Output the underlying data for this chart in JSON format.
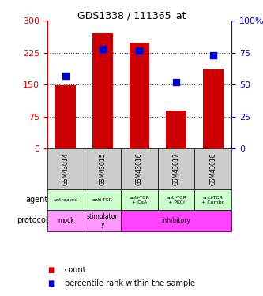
{
  "title": "GDS1338 / 111365_at",
  "samples": [
    "GSM43014",
    "GSM43015",
    "GSM43016",
    "GSM43017",
    "GSM43018"
  ],
  "counts": [
    148,
    270,
    248,
    90,
    188
  ],
  "percentile_ranks": [
    57,
    78,
    77,
    52,
    73
  ],
  "ylim_left": [
    0,
    300
  ],
  "ylim_right": [
    0,
    100
  ],
  "yticks_left": [
    0,
    75,
    150,
    225,
    300
  ],
  "yticks_right": [
    0,
    25,
    50,
    75,
    100
  ],
  "ytick_labels_left": [
    "0",
    "75",
    "150",
    "225",
    "300"
  ],
  "ytick_labels_right": [
    "0",
    "25",
    "50",
    "75",
    "100%"
  ],
  "bar_color": "#cc0000",
  "dot_color": "#0000cc",
  "agent_labels": [
    "untreated",
    "anti-TCR",
    "anti-TCR\n+ CsA",
    "anti-TCR\n+ PKCi",
    "anti-TCR\n+ Combo"
  ],
  "agent_color": "#ccffcc",
  "protocol_labels": [
    "mock",
    "stimulator\ny",
    "inhibitory",
    "inhibitory",
    "inhibitory"
  ],
  "protocol_span": [
    {
      "label": "mock",
      "start": 0,
      "end": 1,
      "color": "#ff99ff"
    },
    {
      "label": "stimulator\ny",
      "start": 1,
      "end": 2,
      "color": "#ff99ff"
    },
    {
      "label": "inhibitory",
      "start": 2,
      "end": 5,
      "color": "#ff44ff"
    }
  ],
  "sample_header_color": "#cccccc",
  "background_color": "#ffffff",
  "plot_bg_color": "#ffffff",
  "dotted_line_color": "#333333",
  "left_axis_color": "#cc0000",
  "right_axis_color": "#0000cc"
}
